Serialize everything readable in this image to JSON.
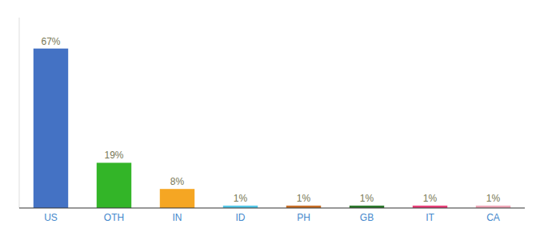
{
  "chart_data": {
    "type": "bar",
    "categories": [
      "US",
      "OTH",
      "IN",
      "ID",
      "PH",
      "GB",
      "IT",
      "CA"
    ],
    "values": [
      67,
      19,
      8,
      1,
      1,
      1,
      1,
      1
    ],
    "value_labels": [
      "67%",
      "19%",
      "8%",
      "1%",
      "1%",
      "1%",
      "1%",
      "1%"
    ],
    "colors": [
      "#4472c4",
      "#33b528",
      "#f5a623",
      "#56c8e8",
      "#c87028",
      "#2d7a2d",
      "#e8417a",
      "#f0a8b8"
    ],
    "ylim": [
      0,
      80
    ],
    "data_labels": true,
    "tick_labels": "x",
    "grid": false
  }
}
